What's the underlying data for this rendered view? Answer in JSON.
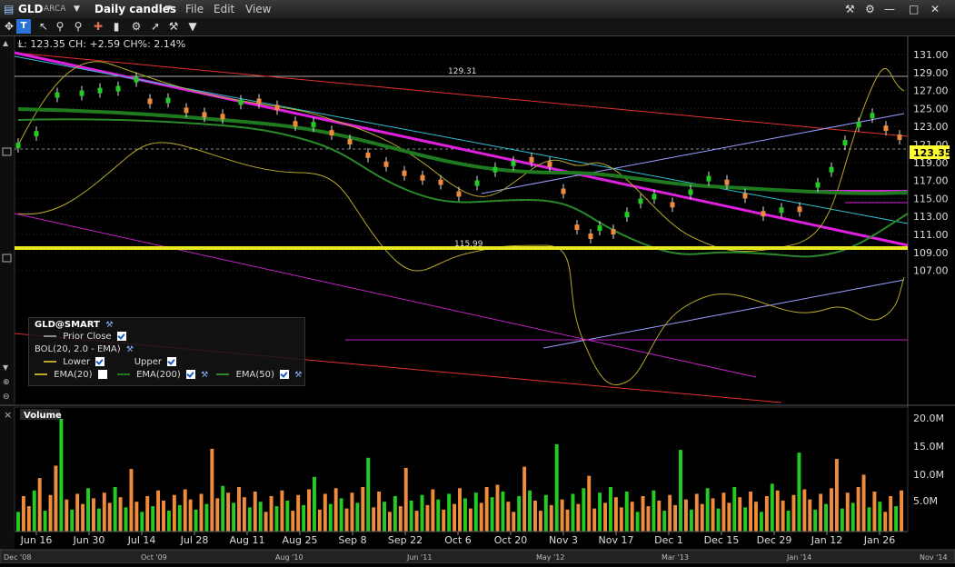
{
  "window": {
    "symbol": "GLD",
    "exchange": "ARCA",
    "period_label": "Daily candles",
    "menu": [
      "File",
      "Edit",
      "View"
    ]
  },
  "info_line": "L: 123.35 CH: +2.59 CH%: 2.14%",
  "price_axis": {
    "labels": [
      "131.00",
      "129.00",
      "127.00",
      "125.00",
      "123.00",
      "121.00",
      "119.00",
      "117.00",
      "115.00",
      "113.00",
      "111.00",
      "109.00",
      "107.00"
    ],
    "current_price": "123.35",
    "marker_129": "129.31",
    "marker_115": "115.99"
  },
  "legend": {
    "title": "GLD@SMART",
    "prior_close": "Prior Close",
    "bol": "BOL(20, 2.0 - EMA)",
    "lower": "Lower",
    "upper": "Upper",
    "ema20": "EMA(20)",
    "ema200": "EMA(200)",
    "ema50": "EMA(50)"
  },
  "volume_panel": {
    "title": "Volume",
    "axis_labels": [
      "20.0M",
      "15.0M",
      "10.0M",
      "5.0M"
    ]
  },
  "date_axis": [
    "Jun 16",
    "Jun 30",
    "Jul 14",
    "Jul 28",
    "Aug 11",
    "Aug 25",
    "Sep 8",
    "Sep 22",
    "Oct 6",
    "Oct 20",
    "Nov 3",
    "Nov 17",
    "Dec 1",
    "Dec 15",
    "Dec 29",
    "Jan 12",
    "Jan 26"
  ],
  "navigator_axis": [
    "Dec '08",
    "Oct '09",
    "Aug '10",
    "Jun '11",
    "May '12",
    "Mar '13",
    "Jan '14",
    "Nov '14"
  ],
  "colors": {
    "up": "#22cc22",
    "down": "#f08a3c",
    "bollinger": "#b8a82a",
    "ema200": "#1f7a1f",
    "ema50": "#2a8a2a",
    "support": "#e8e820",
    "magenta": "#e020e0",
    "cyan": "#30c0d0",
    "red": "#e03030",
    "lavender": "#9aa0ff"
  }
}
